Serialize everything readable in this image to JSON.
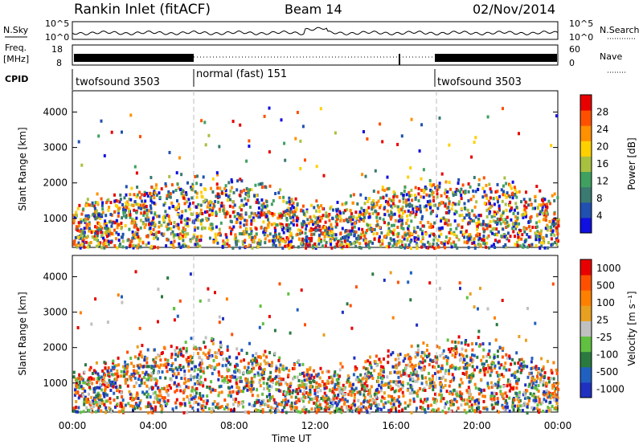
{
  "header": {
    "station": "Rankin Inlet (fitACF)",
    "beam": "Beam 14",
    "date": "02/Nov/2014"
  },
  "nsky_panel": {
    "left_label": "N.Sky",
    "left_ticks": [
      "10^5",
      "10^0"
    ],
    "right_ticks": [
      "10^5",
      "10^0"
    ],
    "right_label": "N.Search"
  },
  "freq_panel": {
    "left_label_1": "Freq.",
    "left_label_2": "[MHz]",
    "left_ticks": [
      "18",
      "8"
    ],
    "right_ticks": [
      "60",
      "0"
    ],
    "right_label": "Nave"
  },
  "cpid_panel": {
    "label": "CPID",
    "segments": [
      {
        "text": "twofsound 3503",
        "start": 0,
        "end": 6
      },
      {
        "text": "normal (fast) 151",
        "start": 6,
        "end": 18
      },
      {
        "text": "twofsound 3503",
        "start": 18,
        "end": 24
      }
    ]
  },
  "colors": {
    "power": [
      "#1010e0",
      "#2050b0",
      "#3a7a70",
      "#40a060",
      "#a8c040",
      "#ffd000",
      "#ff9000",
      "#ff5000",
      "#e80000"
    ],
    "velocity": [
      "#2030c0",
      "#2060c0",
      "#2a7a40",
      "#60c040",
      "#c0c0c0",
      "#e8a020",
      "#ff8000",
      "#ff5000",
      "#e80000"
    ]
  },
  "chart_data": [
    {
      "type": "heatmap",
      "title": "Power",
      "ylabel": "Slant Range [km]",
      "xlabel": "Time UT",
      "x_ticks": [
        "00:00",
        "04:00",
        "08:00",
        "12:00",
        "16:00",
        "20:00",
        "00:00"
      ],
      "x_range_hours": [
        0,
        24
      ],
      "y_ticks": [
        1000,
        2000,
        3000,
        4000
      ],
      "ylim": [
        180,
        4600
      ],
      "colorbar": {
        "label": "Power [dB]",
        "ticks": [
          "4",
          "8",
          "12",
          "16",
          "20",
          "24",
          "28"
        ],
        "range": [
          0,
          32
        ]
      },
      "mode_boundaries_hours": [
        6,
        18
      ]
    },
    {
      "type": "heatmap",
      "title": "Velocity",
      "ylabel": "Slant Range [km]",
      "xlabel": "Time UT",
      "x_ticks": [
        "00:00",
        "04:00",
        "08:00",
        "12:00",
        "16:00",
        "20:00",
        "00:00"
      ],
      "x_range_hours": [
        0,
        24
      ],
      "y_ticks": [
        1000,
        2000,
        3000,
        4000
      ],
      "ylim": [
        180,
        4600
      ],
      "colorbar": {
        "label": "Velocity [m s⁻¹]",
        "ticks": [
          "1000",
          "500",
          "100",
          "25",
          "-25",
          "-100",
          "-500",
          "-1000"
        ]
      },
      "mode_boundaries_hours": [
        6,
        18
      ]
    }
  ]
}
